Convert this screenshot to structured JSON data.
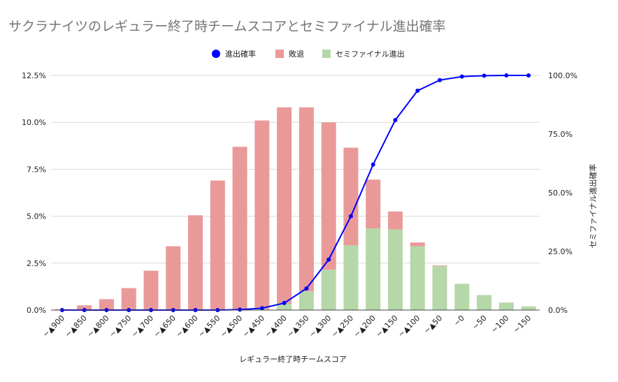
{
  "chart_data": {
    "type": "bar",
    "stacked": true,
    "title": "サクラナイツのレギュラー終了時チームスコアとセミファイナル進出確率",
    "xlabel": "レギュラー終了時チームスコア",
    "ylabel_left": "",
    "ylabel_right": "セミファイナル進出確率",
    "categories": [
      "~▲900",
      "~▲850",
      "~▲800",
      "~▲750",
      "~▲700",
      "~▲650",
      "~▲600",
      "~▲550",
      "~▲500",
      "~▲450",
      "~▲400",
      "~▲350",
      "~▲300",
      "~▲250",
      "~▲200",
      "~▲150",
      "~▲100",
      "~▲50",
      "~0",
      "~50",
      "~100",
      "~150"
    ],
    "left_axis": {
      "ylim": [
        0,
        12.5
      ],
      "ticks": [
        "0.0%",
        "2.5%",
        "5.0%",
        "7.5%",
        "10.0%",
        "12.5%"
      ]
    },
    "right_axis": {
      "ylim": [
        0,
        100
      ],
      "ticks": [
        "0.0%",
        "25.0%",
        "50.0%",
        "75.0%",
        "100.0%"
      ]
    },
    "legend_position": "top",
    "series": [
      {
        "name": "進出確率",
        "kind": "line",
        "axis": "right",
        "color": "#0000ff",
        "values": [
          0,
          0,
          0,
          0,
          0,
          0,
          0,
          0,
          0.2,
          0.8,
          3,
          9.2,
          21.5,
          40,
          62,
          81,
          93.5,
          98,
          99.5,
          99.9,
          100,
          100
        ]
      },
      {
        "name": "敗退",
        "kind": "bar",
        "axis": "left",
        "color": "#ea9999",
        "values": [
          0.05,
          0.25,
          0.58,
          1.17,
          2.1,
          3.4,
          5.05,
          6.9,
          8.7,
          10.05,
          10.45,
          9.8,
          7.85,
          5.2,
          2.6,
          0.95,
          0.2,
          0.03,
          0,
          0,
          0,
          0
        ]
      },
      {
        "name": "セミファイナル進出",
        "kind": "bar",
        "axis": "left",
        "color": "#b6d7a8",
        "values": [
          0,
          0,
          0,
          0,
          0,
          0,
          0,
          0,
          0,
          0.05,
          0.35,
          1.0,
          2.15,
          3.45,
          4.35,
          4.3,
          3.4,
          2.35,
          1.4,
          0.8,
          0.4,
          0.2
        ]
      }
    ],
    "grid": true
  },
  "colors": {
    "grid": "#d9d9d9",
    "axis_line": "#444444",
    "title": "#757575"
  }
}
